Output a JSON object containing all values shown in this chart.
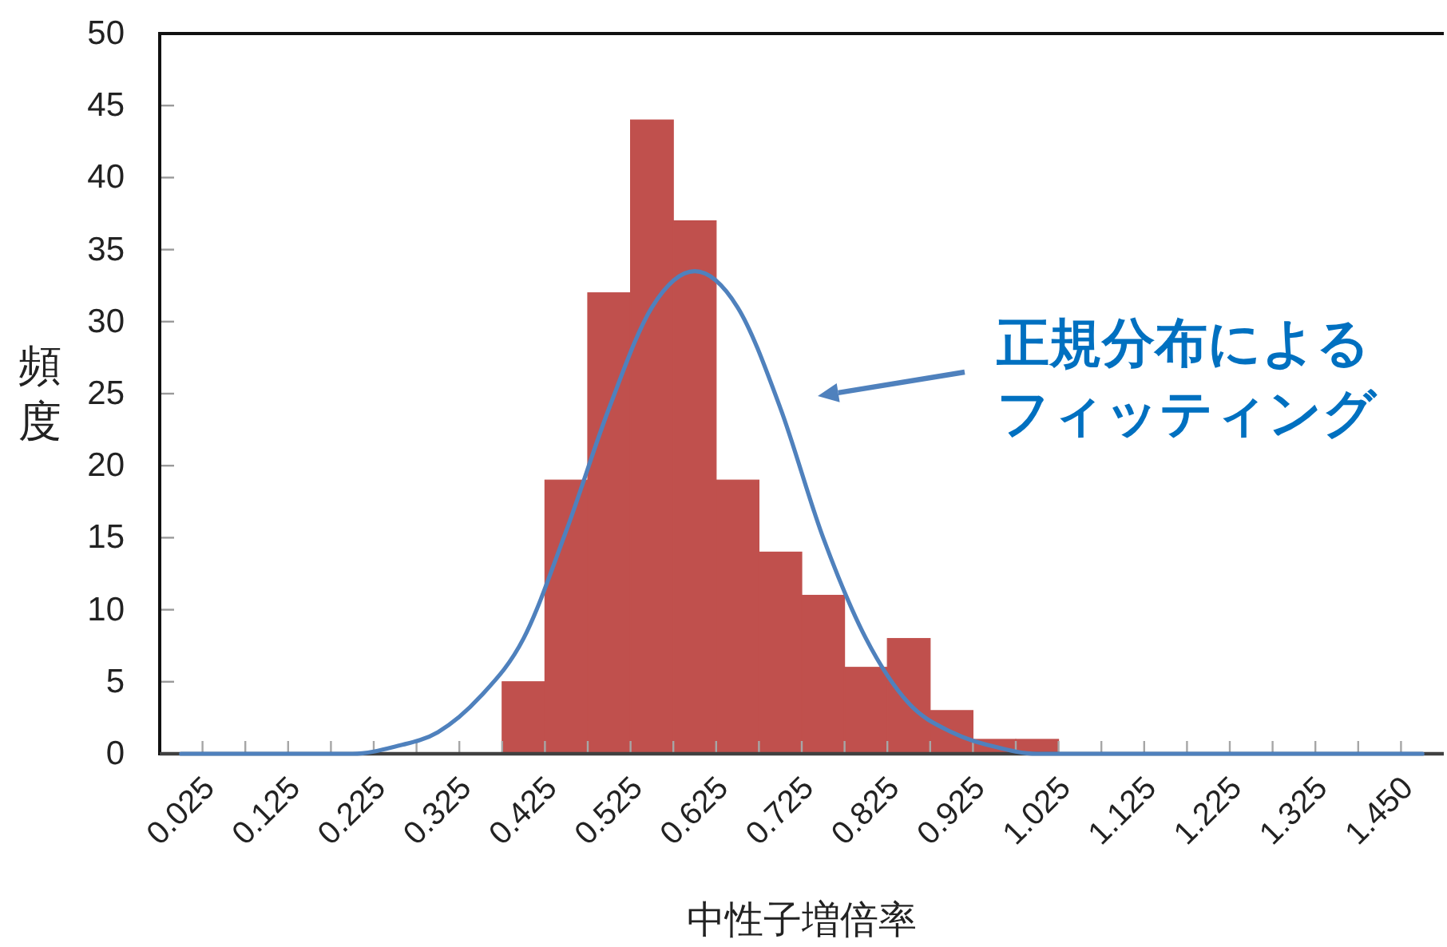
{
  "chart_data": {
    "type": "bar",
    "xlabel": "中性子増倍率",
    "ylabel": "頻度",
    "categories": [
      "0.025",
      null,
      "0.125",
      null,
      "0.225",
      null,
      "0.325",
      null,
      "0.425",
      null,
      "0.525",
      null,
      "0.625",
      null,
      "0.725",
      null,
      "0.825",
      null,
      "0.925",
      null,
      "1.025",
      null,
      "1.125",
      null,
      "1.225",
      null,
      "1.325",
      null,
      "1.450",
      null
    ],
    "ylim": [
      0,
      50
    ],
    "yticks": [
      0,
      5,
      10,
      15,
      20,
      25,
      30,
      35,
      40,
      45,
      50
    ],
    "series": [
      {
        "color": "#c0504d",
        "values": [
          0,
          0,
          0,
          0,
          0,
          0,
          0,
          0,
          5,
          19,
          32,
          44,
          37,
          19,
          14,
          11,
          6,
          8,
          3,
          1,
          1,
          0,
          0,
          0,
          0,
          0,
          0,
          0,
          0,
          0
        ]
      },
      {
        "type": "line",
        "color": "#4f81bd",
        "values": [
          0,
          0,
          0,
          0,
          0,
          0.5,
          1.5,
          4,
          8,
          15.5,
          24,
          31,
          33.5,
          31,
          24,
          15,
          8,
          3.5,
          1.5,
          0.5,
          0,
          0,
          0,
          0,
          0,
          0,
          0,
          0,
          0,
          0
        ]
      }
    ],
    "annotations": [
      "正規分布によるフィッティング"
    ]
  }
}
